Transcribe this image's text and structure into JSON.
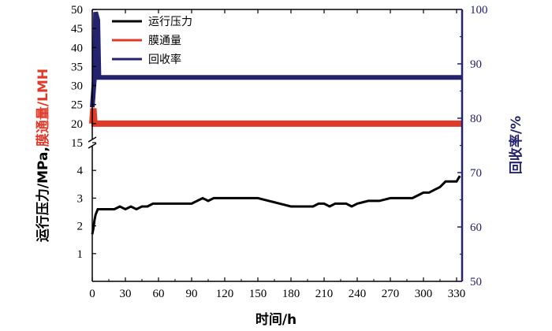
{
  "chart_data": {
    "type": "line",
    "xlabel": "时间/h",
    "ylabel_left_parts": [
      {
        "text": "运行压力/MPa,",
        "color": "#000000"
      },
      {
        "text": "膜通量/LMH",
        "color": "#e03a2a"
      }
    ],
    "ylabel_right": "回收率/%",
    "xlim": [
      0,
      335
    ],
    "x_ticks": [
      0,
      30,
      60,
      90,
      120,
      150,
      180,
      210,
      240,
      270,
      300,
      330
    ],
    "ylim_left_lower": [
      0,
      5
    ],
    "y_ticks_left_lower": [
      1,
      2,
      3,
      4
    ],
    "ylim_left_upper": [
      15,
      50
    ],
    "y_ticks_left_upper": [
      15,
      20,
      25,
      30,
      35,
      40,
      45,
      50
    ],
    "y_break": "15",
    "ylim_right": [
      50,
      100
    ],
    "y_ticks_right": [
      50,
      60,
      70,
      80,
      90,
      100
    ],
    "legend_position": "top-left",
    "colors": {
      "pressure": "#000000",
      "flux": "#e03a2a",
      "recovery": "#23236e",
      "right_axis": "#23236e"
    },
    "series": [
      {
        "name": "运行压力",
        "axis": "left",
        "color": "#000000",
        "x": [
          0,
          1,
          2,
          3,
          5,
          10,
          20,
          25,
          30,
          35,
          40,
          45,
          50,
          55,
          60,
          70,
          80,
          90,
          95,
          100,
          105,
          110,
          120,
          130,
          140,
          150,
          160,
          170,
          180,
          190,
          200,
          205,
          210,
          215,
          220,
          230,
          235,
          240,
          250,
          260,
          270,
          280,
          290,
          295,
          300,
          305,
          310,
          315,
          320,
          325,
          330,
          333
        ],
        "y": [
          1.7,
          1.9,
          2.2,
          2.4,
          2.6,
          2.6,
          2.6,
          2.7,
          2.6,
          2.7,
          2.6,
          2.7,
          2.7,
          2.8,
          2.8,
          2.8,
          2.8,
          2.8,
          2.9,
          3.0,
          2.9,
          3.0,
          3.0,
          3.0,
          3.0,
          3.0,
          2.9,
          2.8,
          2.7,
          2.7,
          2.7,
          2.8,
          2.8,
          2.7,
          2.8,
          2.8,
          2.7,
          2.8,
          2.9,
          2.9,
          3.0,
          3.0,
          3.0,
          3.1,
          3.2,
          3.2,
          3.3,
          3.4,
          3.6,
          3.6,
          3.6,
          3.8
        ]
      },
      {
        "name": "膜通量",
        "axis": "left",
        "color": "#e03a2a",
        "x": [
          0,
          1,
          2,
          3,
          10,
          60,
          120,
          180,
          240,
          300,
          335
        ],
        "y": [
          20,
          24,
          20,
          20,
          20,
          20,
          20,
          20,
          20,
          20,
          20
        ]
      },
      {
        "name": "回收率",
        "axis": "right",
        "color": "#23236e",
        "x": [
          0,
          2,
          3,
          5,
          6,
          10,
          60,
          120,
          180,
          240,
          300,
          335
        ],
        "y": [
          82,
          87.5,
          99.5,
          98,
          87.5,
          87.5,
          87.5,
          87.5,
          87.5,
          87.5,
          87.5,
          87.5
        ]
      }
    ]
  }
}
